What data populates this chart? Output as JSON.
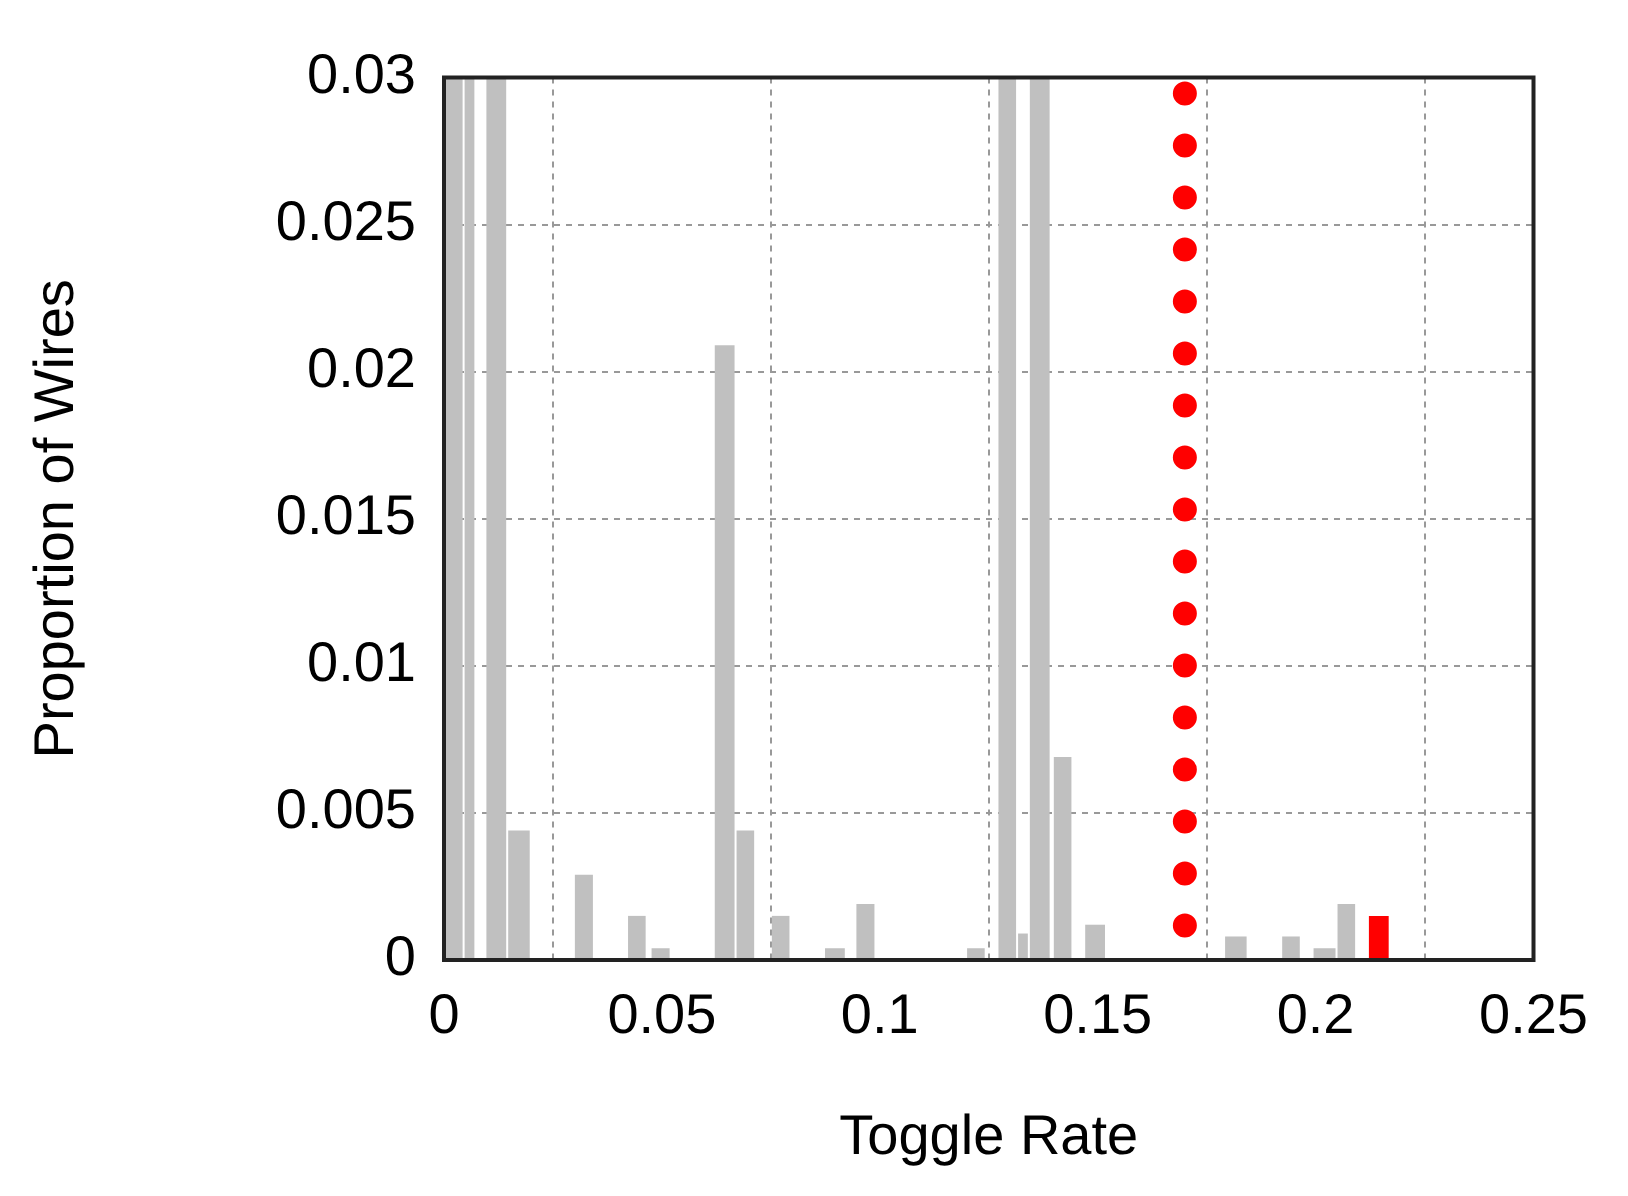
{
  "chart_data": {
    "type": "histogram",
    "xlabel": "Toggle Rate",
    "ylabel": "Proportion of Wires",
    "bins": [
      0,
      0.0045,
      0.0072,
      0.0095,
      0.0145,
      0.0199,
      0.0298,
      0.0344,
      0.042,
      0.0465,
      0.0474,
      0.052,
      0.0619,
      0.0669,
      0.0714,
      0.075,
      0.0795,
      0.0872,
      0.0922,
      0.0944,
      0.099,
      0.1198,
      0.1243,
      0.127,
      0.1315,
      0.1342,
      0.1392,
      0.1397,
      0.1442,
      0.1469,
      0.1519,
      0.179,
      0.1844,
      0.1921,
      0.1966,
      0.1993,
      0.2048,
      0.2093,
      0.212,
      0.217
    ],
    "values": [
      0.03,
      0.03,
      null,
      0.03,
      0.0044,
      null,
      0.0029,
      null,
      0.0015,
      null,
      0.0004,
      null,
      0.0209,
      0.0044,
      null,
      0.0015,
      null,
      0.0004,
      null,
      0.0019,
      null,
      0.0004,
      null,
      0.03,
      0.0009,
      0.03,
      null,
      0.0069,
      null,
      0.0012,
      null,
      0.0008,
      null,
      0.0008,
      null,
      0.0004,
      0.0019,
      null,
      0.0015
    ],
    "colors": [
      "#c0c0c0",
      "#c0c0c0",
      null,
      "#c0c0c0",
      "#c0c0c0",
      null,
      "#c0c0c0",
      null,
      "#c0c0c0",
      null,
      "#c0c0c0",
      null,
      "#c0c0c0",
      "#c0c0c0",
      null,
      "#c0c0c0",
      null,
      "#c0c0c0",
      null,
      "#c0c0c0",
      null,
      "#c0c0c0",
      null,
      "#c0c0c0",
      "#c0c0c0",
      "#c0c0c0",
      null,
      "#c0c0c0",
      null,
      "#c0c0c0",
      null,
      "#c0c0c0",
      null,
      "#c0c0c0",
      null,
      "#c0c0c0",
      "#c0c0c0",
      null,
      "#ff0000"
    ],
    "xlim": [
      0,
      0.25
    ],
    "xticks": [
      0,
      0.05,
      0.1,
      0.15,
      0.2,
      0.25
    ],
    "ylim": [
      0,
      0.03
    ],
    "yticks": [
      0,
      0.005,
      0.01,
      0.015,
      0.02,
      0.025,
      0.03
    ],
    "grid": true,
    "ref_lines": [
      {
        "axis": "x",
        "value": 0.17,
        "color": "#ff0000",
        "line_style": "dotted"
      }
    ]
  }
}
